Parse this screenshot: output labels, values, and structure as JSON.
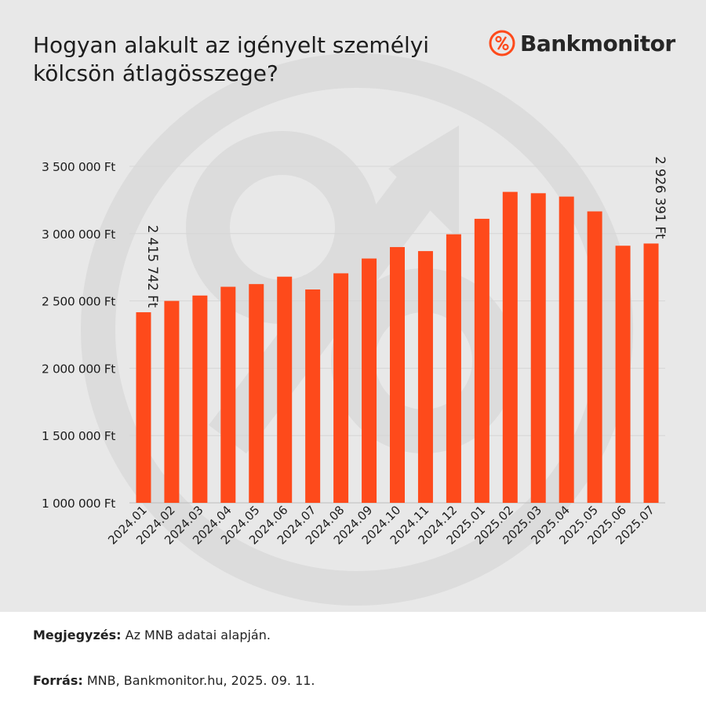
{
  "header": {
    "title": "Hogyan alakult az igényelt személyi kölcsön átlagösszege?",
    "brand": "Bankmonitor",
    "brand_icon": "percent-icon",
    "accent_color": "#fe4a1b"
  },
  "footer": {
    "note_label": "Megjegyzés:",
    "note_text": " Az MNB adatai alapján.",
    "source_label": "Forrás:",
    "source_text": " MNB, Bankmonitor.hu, 2025. 09. 11."
  },
  "chart_data": {
    "type": "bar",
    "title": "",
    "xlabel": "",
    "ylabel": "",
    "ylim": [
      1000000,
      3500000
    ],
    "yticks": [
      {
        "value": 1000000,
        "label": "1 000 000 Ft"
      },
      {
        "value": 1500000,
        "label": "1 500 000 Ft"
      },
      {
        "value": 2000000,
        "label": "2 000 000 Ft"
      },
      {
        "value": 2500000,
        "label": "2 500 000 Ft"
      },
      {
        "value": 3000000,
        "label": "3 000 000 Ft"
      },
      {
        "value": 3500000,
        "label": "3 500 000 Ft"
      }
    ],
    "grid": true,
    "bar_color": "#fe4a1b",
    "categories": [
      "2024.01",
      "2024.02",
      "2024.03",
      "2024.04",
      "2024.05",
      "2024.06",
      "2024.07",
      "2024.08",
      "2024.09",
      "2024.10",
      "2024.11",
      "2024.12",
      "2025.01",
      "2025.02",
      "2025.03",
      "2025.04",
      "2025.05",
      "2025.06",
      "2025.07"
    ],
    "values": [
      2415742,
      2500000,
      2540000,
      2605000,
      2625000,
      2680000,
      2585000,
      2705000,
      2815000,
      2900000,
      2870000,
      2995000,
      3110000,
      3310000,
      3300000,
      3275000,
      3165000,
      2910000,
      2926391
    ],
    "data_labels": [
      {
        "index": 0,
        "text": "2 415 742 Ft"
      },
      {
        "index": 18,
        "text": "2 926 391 Ft"
      }
    ]
  }
}
